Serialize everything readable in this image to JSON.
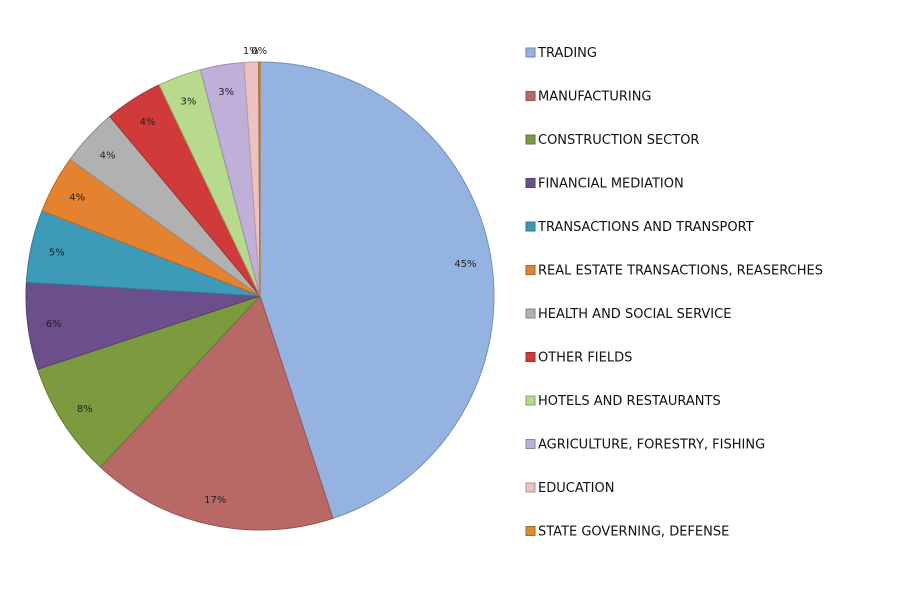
{
  "chart_data": {
    "type": "pie",
    "title": "",
    "legend_position": "right",
    "categories": [
      "TRADING",
      "MANUFACTURING",
      "CONSTRUCTION SECTOR",
      "FINANCIAL MEDIATION",
      "TRANSACTIONS AND TRANSPORT",
      "REAL ESTATE TRANSACTIONS, REASERCHES",
      "HEALTH AND SOCIAL SERVICE",
      "OTHER FIELDS",
      "HOTELS AND RESTAURANTS",
      "AGRICULTURE, FORESTRY, FISHING",
      "EDUCATION",
      "STATE GOVERNING, DEFENSE"
    ],
    "values": [
      45,
      17,
      8,
      6,
      5,
      4,
      4,
      4,
      3,
      3,
      1,
      0
    ],
    "value_labels": [
      "45%",
      "17%",
      "8%",
      "6%",
      "5%",
      "4%",
      "4%",
      "4%",
      "3%",
      "3%",
      "1%",
      "0%"
    ],
    "colors": [
      "#95b3e0",
      "#b86966",
      "#7c9a3e",
      "#6b4f8c",
      "#3d9bb8",
      "#e5822f",
      "#b1b1b1",
      "#d03a3a",
      "#b7da8c",
      "#c0afd9",
      "#ecc1c1",
      "#e38a2c"
    ]
  }
}
